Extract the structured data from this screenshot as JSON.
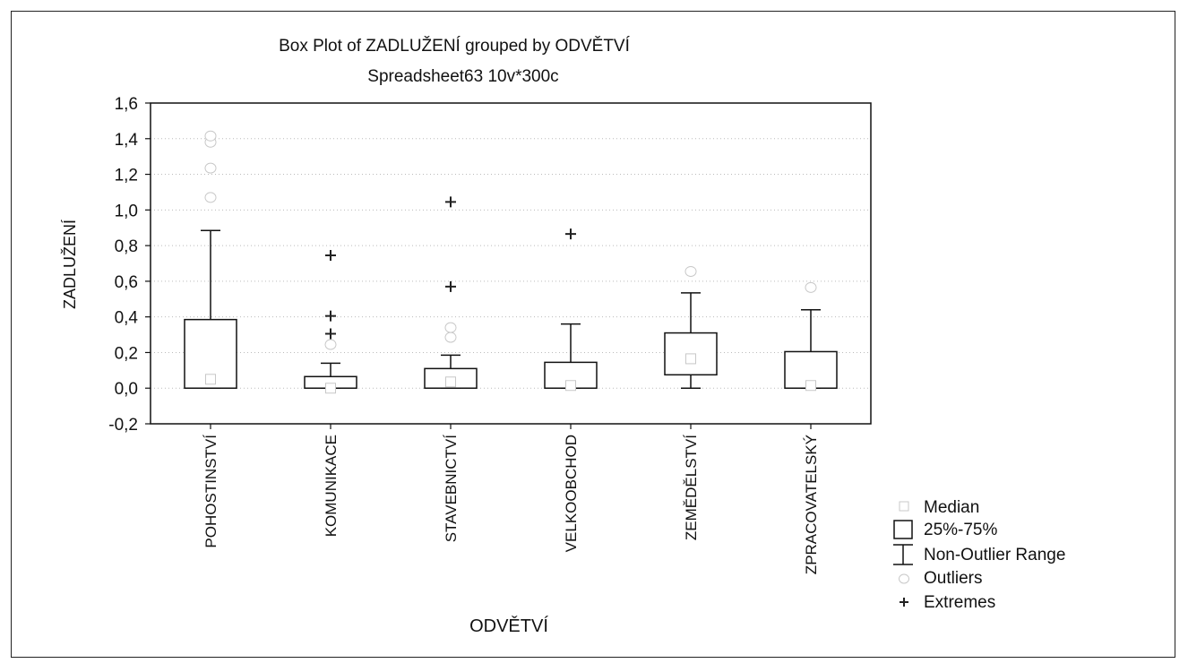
{
  "chart_data": {
    "type": "boxplot",
    "title": "Box Plot of ZADLUŽENÍ grouped by  ODVĚTVÍ",
    "subtitle": "Spreadsheet63 10v*300c",
    "xlabel": "ODVĚTVÍ",
    "ylabel": "ZADLUŽENÍ",
    "ylim": [
      -0.2,
      1.6
    ],
    "yticks": [
      -0.2,
      0.0,
      0.2,
      0.4,
      0.6,
      0.8,
      1.0,
      1.2,
      1.4,
      1.6
    ],
    "ytick_labels": [
      "-0,2",
      "0,0",
      "0,2",
      "0,4",
      "0,6",
      "0,8",
      "1,0",
      "1,2",
      "1,4",
      "1,6"
    ],
    "grid": "horizontal dotted",
    "legend_position": "bottom-right outside",
    "categories": [
      "POHOSTINSTVÍ",
      "KOMUNIKACE",
      "STAVEBNICTVÍ",
      "VELKOOBCHOD",
      "ZEMĚDĚLSTVÍ",
      "ZPRACOVATELSKÝ"
    ],
    "boxes": [
      {
        "category": "POHOSTINSTVÍ",
        "median": 0.05,
        "q1": 0.0,
        "q3": 0.385,
        "whisker_low": 0.0,
        "whisker_high": 0.885,
        "outliers": [
          1.07,
          1.235,
          1.38,
          1.415
        ],
        "extremes": []
      },
      {
        "category": "KOMUNIKACE",
        "median": 0.0,
        "q1": 0.0,
        "q3": 0.065,
        "whisker_low": 0.0,
        "whisker_high": 0.14,
        "outliers": [
          0.245
        ],
        "extremes": [
          0.305,
          0.405,
          0.745
        ]
      },
      {
        "category": "STAVEBNICTVÍ",
        "median": 0.035,
        "q1": 0.0,
        "q3": 0.11,
        "whisker_low": 0.0,
        "whisker_high": 0.185,
        "outliers": [
          0.285,
          0.34
        ],
        "extremes": [
          0.57,
          1.045
        ]
      },
      {
        "category": "VELKOOBCHOD",
        "median": 0.015,
        "q1": 0.0,
        "q3": 0.145,
        "whisker_low": 0.0,
        "whisker_high": 0.36,
        "outliers": [],
        "extremes": [
          0.865
        ]
      },
      {
        "category": "ZEMĚDĚLSTVÍ",
        "median": 0.165,
        "q1": 0.075,
        "q3": 0.31,
        "whisker_low": 0.0,
        "whisker_high": 0.535,
        "outliers": [
          0.655
        ],
        "extremes": []
      },
      {
        "category": "ZPRACOVATELSKÝ",
        "median": 0.015,
        "q1": 0.0,
        "q3": 0.205,
        "whisker_low": 0.0,
        "whisker_high": 0.44,
        "outliers": [
          0.565
        ],
        "extremes": []
      }
    ],
    "legend": {
      "median": "Median",
      "box": "25%-75%",
      "whisker": "Non-Outlier Range",
      "outliers": "Outliers",
      "extremes": "Extremes"
    },
    "colors": {
      "axis": "#111111",
      "grid": "#bbbbbb",
      "median_marker": "#c8c8c8",
      "outlier_marker": "#c8c8c8",
      "extreme_marker": "#222222"
    }
  }
}
